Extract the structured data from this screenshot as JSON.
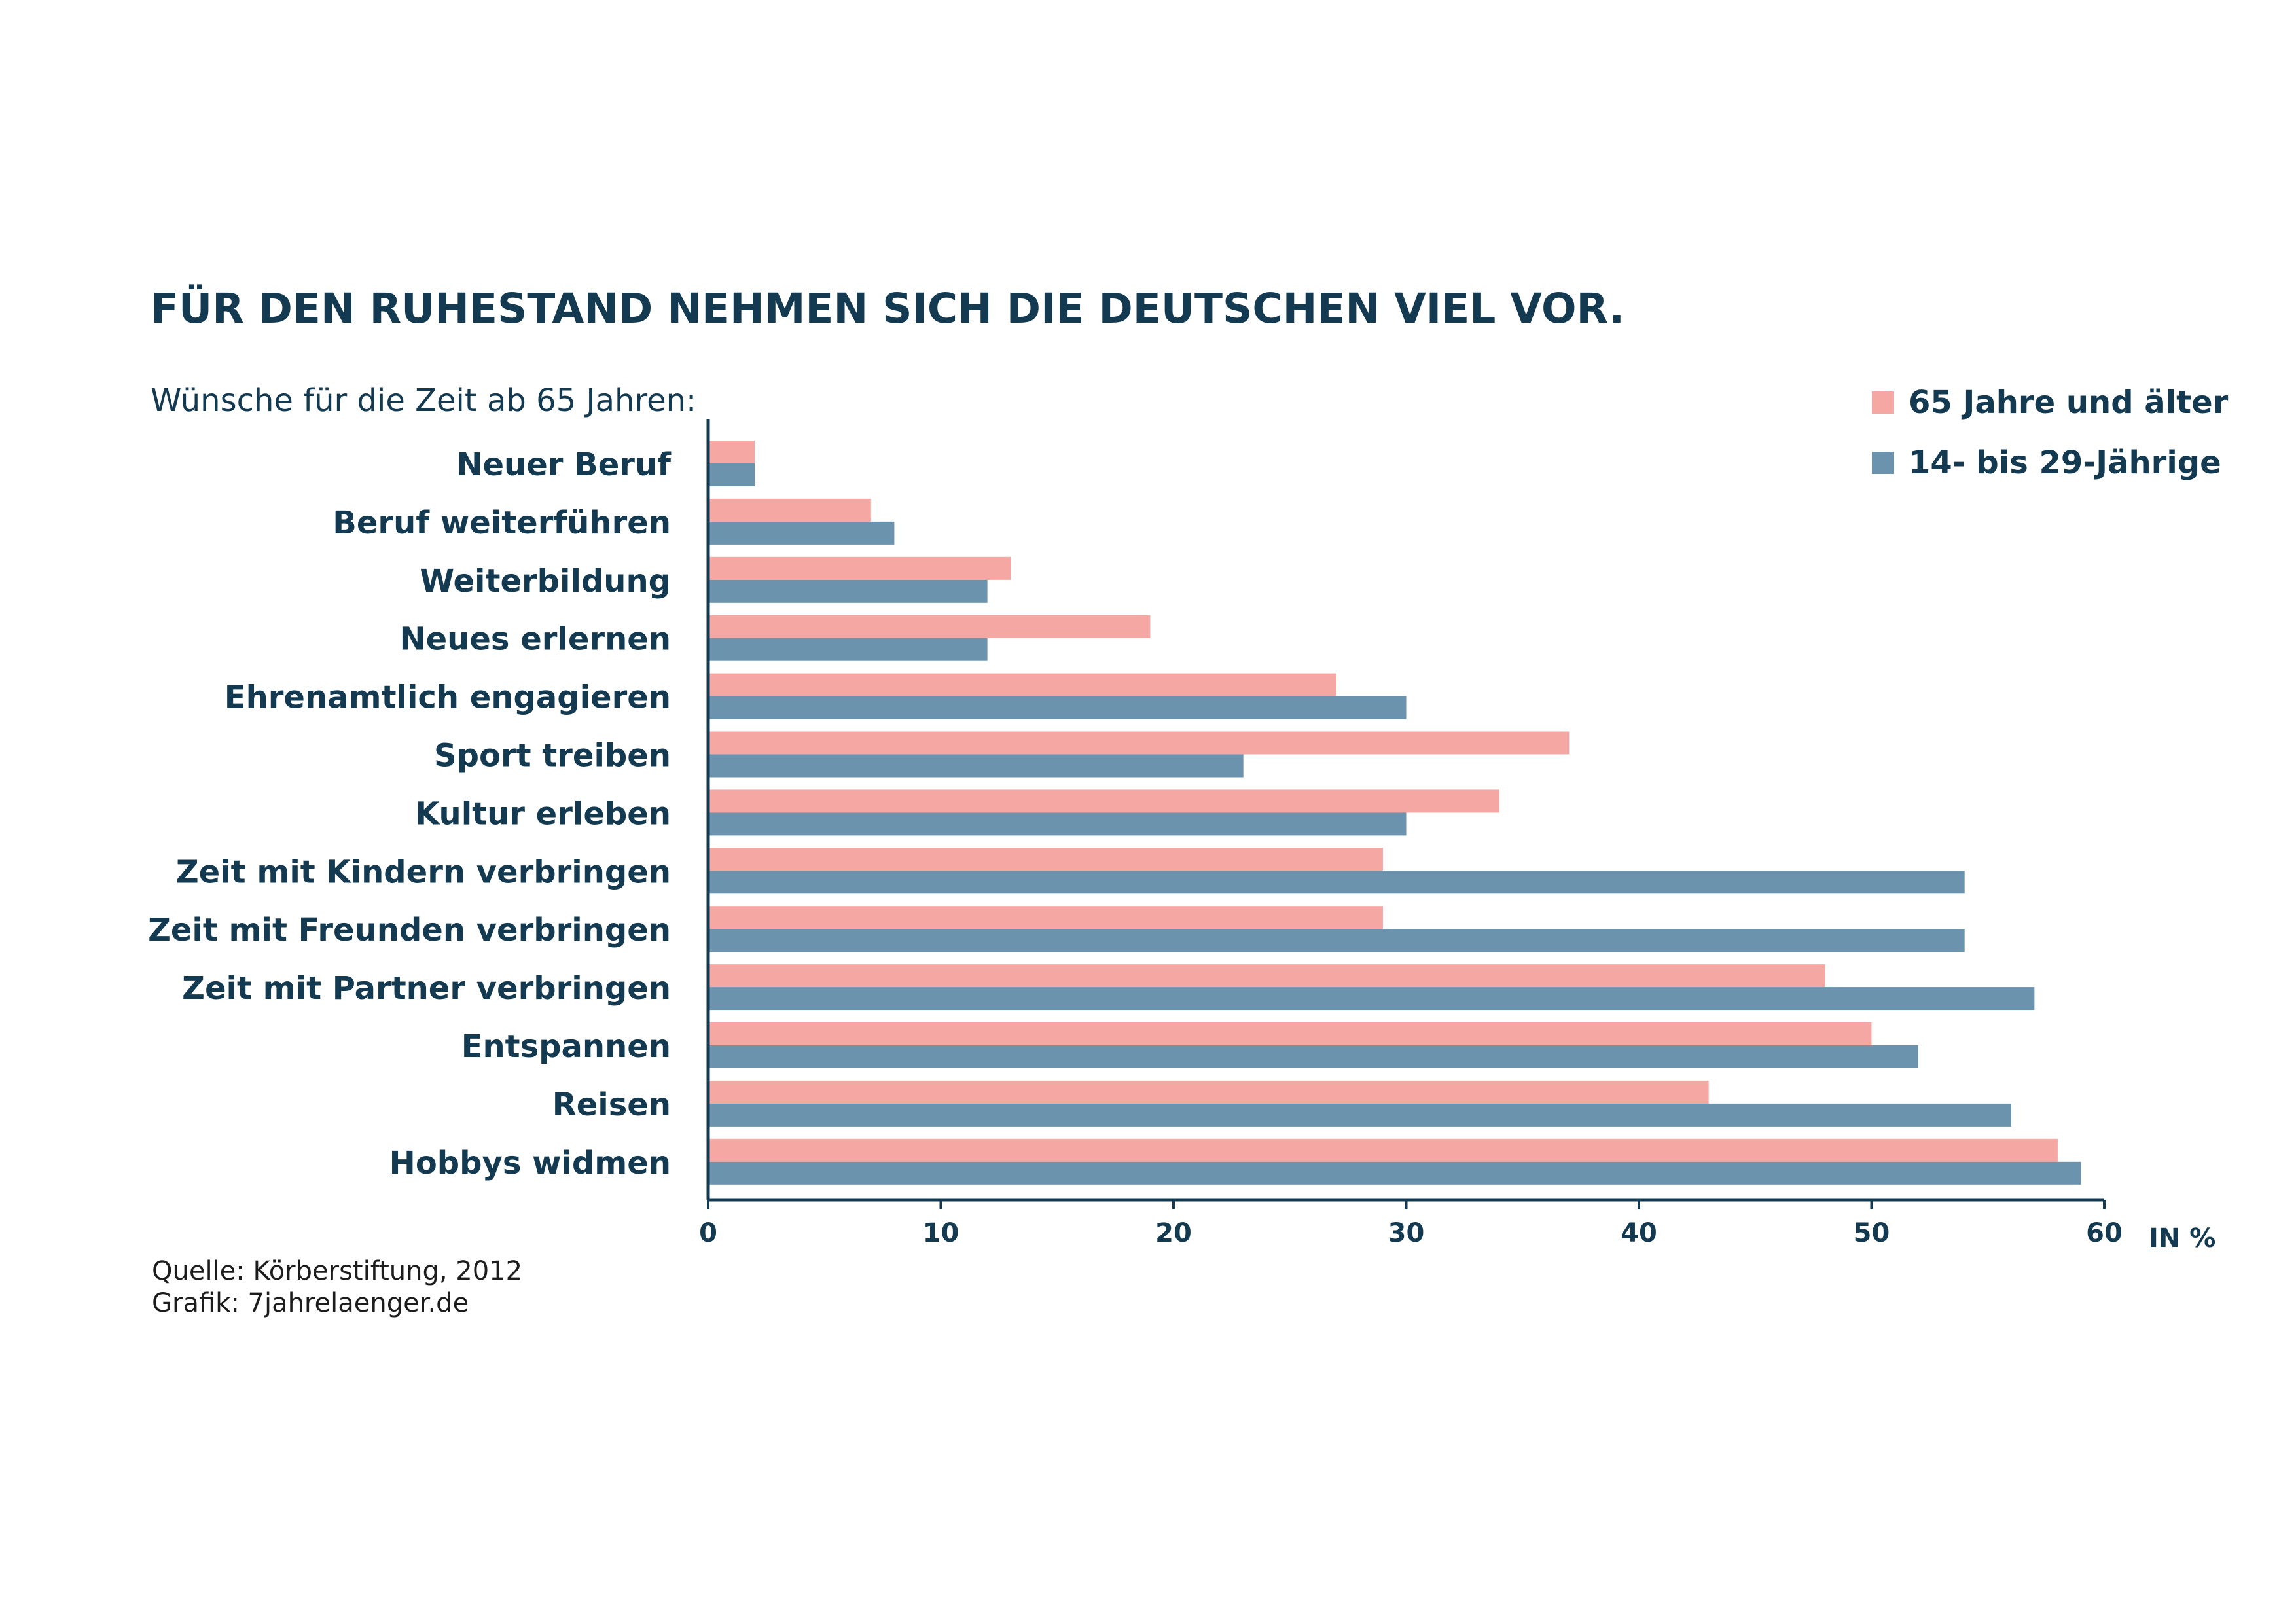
{
  "chart_data": {
    "type": "bar",
    "orientation": "horizontal",
    "title": "FÜR DEN RUHESTAND NEHMEN SICH DIE DEUTSCHEN VIEL VOR.",
    "subtitle": "Wünsche für die Zeit ab 65 Jahren:",
    "xlabel": "IN %",
    "xlim": [
      0,
      60
    ],
    "xticks": [
      0,
      10,
      20,
      30,
      40,
      50,
      60
    ],
    "grid": false,
    "legend_position": "top-right",
    "categories": [
      "Neuer Beruf",
      "Beruf weiterführen",
      "Weiterbildung",
      "Neues erlernen",
      "Ehrenamtlich engagieren",
      "Sport treiben",
      "Kultur erleben",
      "Zeit mit Kindern verbringen",
      "Zeit mit Freunden verbringen",
      "Zeit mit Partner verbringen",
      "Entspannen",
      "Reisen",
      "Hobbys widmen"
    ],
    "series": [
      {
        "name": "65 Jahre und älter",
        "color": "#f5a8a3",
        "values": [
          2,
          7,
          13,
          19,
          27,
          37,
          34,
          29,
          29,
          48,
          50,
          43,
          58
        ]
      },
      {
        "name": "14- bis 29-Jährige",
        "color": "#6b93ad",
        "values": [
          2,
          8,
          12,
          12,
          30,
          23,
          30,
          54,
          54,
          57,
          52,
          56,
          59
        ]
      }
    ],
    "source": [
      "Quelle: Körberstiftung, 2012",
      "Grafik: 7jahrelaenger.de"
    ]
  }
}
